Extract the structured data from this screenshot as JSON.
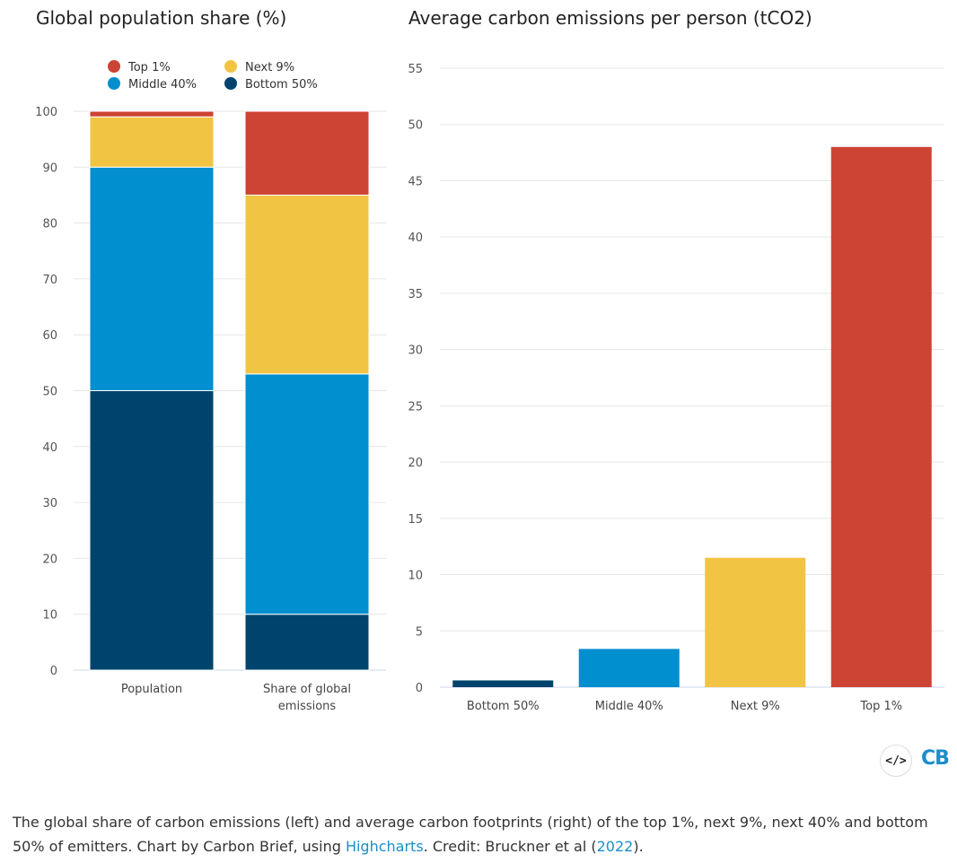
{
  "left_chart": {
    "title": "Global population share (%)"
  },
  "right_chart": {
    "title": "Average carbon emissions per person (tCO2)"
  },
  "chart_data": [
    {
      "type": "bar",
      "stacked": true,
      "title": "Global population share (%)",
      "categories": [
        "Population",
        "Share of global emissions"
      ],
      "category_lines": [
        [
          "Population"
        ],
        [
          "Share of global",
          "emissions"
        ]
      ],
      "series": [
        {
          "name": "Bottom 50%",
          "color": "#00446e",
          "values": [
            50,
            10
          ]
        },
        {
          "name": "Middle 40%",
          "color": "#028fcf",
          "values": [
            40,
            43
          ]
        },
        {
          "name": "Next 9%",
          "color": "#f2c444",
          "values": [
            9,
            32
          ]
        },
        {
          "name": "Top 1%",
          "color": "#cd4334",
          "values": [
            1,
            15
          ]
        }
      ],
      "ylim": [
        0,
        100
      ],
      "yticks": [
        "0",
        "10",
        "20",
        "30",
        "40",
        "50",
        "60",
        "70",
        "80",
        "90",
        "100"
      ],
      "legend": {
        "placement": "top",
        "items": [
          {
            "name": "Top 1%",
            "color": "#cd4334"
          },
          {
            "name": "Next 9%",
            "color": "#f2c444"
          },
          {
            "name": "Middle 40%",
            "color": "#028fcf"
          },
          {
            "name": "Bottom 50%",
            "color": "#00446e"
          }
        ]
      },
      "grid": true
    },
    {
      "type": "bar",
      "title": "Average carbon emissions per person (tCO2)",
      "categories": [
        "Bottom 50%",
        "Middle 40%",
        "Next 9%",
        "Top 1%"
      ],
      "values": [
        0.6,
        3.4,
        11.5,
        48
      ],
      "colors": [
        "#00446e",
        "#028fcf",
        "#f2c444",
        "#cd4334"
      ],
      "ylim": [
        0,
        55
      ],
      "yticks": [
        "0",
        "5",
        "10",
        "15",
        "20",
        "25",
        "30",
        "35",
        "40",
        "45",
        "50",
        "55"
      ],
      "grid": true
    }
  ],
  "toolbar": {
    "embed_label": "</>",
    "logo_text": "CB"
  },
  "caption": {
    "text_1": "The global share of carbon emissions (left) and average carbon footprints (right) of the top 1%, next 9%, next 40% and bottom 50% of emitters. Chart by Carbon Brief, using ",
    "link_1": "Highcharts",
    "text_2": ". Credit: Bruckner et al (",
    "link_2": "2022",
    "text_3": ")."
  }
}
